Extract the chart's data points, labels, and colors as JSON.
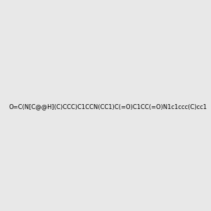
{
  "smiles": "O=C(N[C@@H](C)CCC)C1CCN(CC1)C(=O)C1CC(=O)N1c1ccc(C)cc1",
  "image_size": 300,
  "background_color": "#e8e8e8",
  "title": ""
}
